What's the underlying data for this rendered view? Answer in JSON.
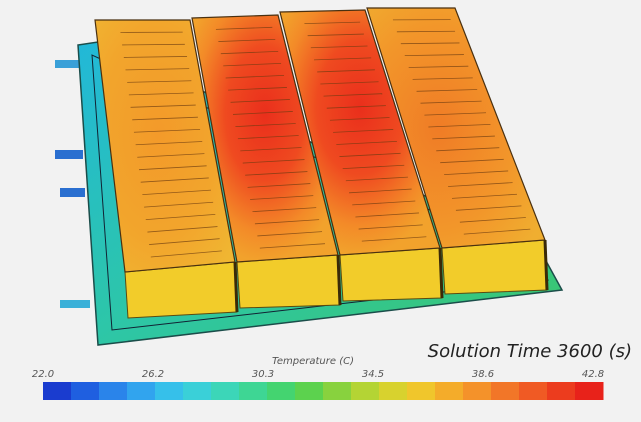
{
  "caption": "Solution Time 3600 (s)",
  "colorbar": {
    "title": "Temperature (C)",
    "labels": [
      "22.0",
      "26.2",
      "30.3",
      "34.5",
      "38.6",
      "42.8"
    ]
  }
}
